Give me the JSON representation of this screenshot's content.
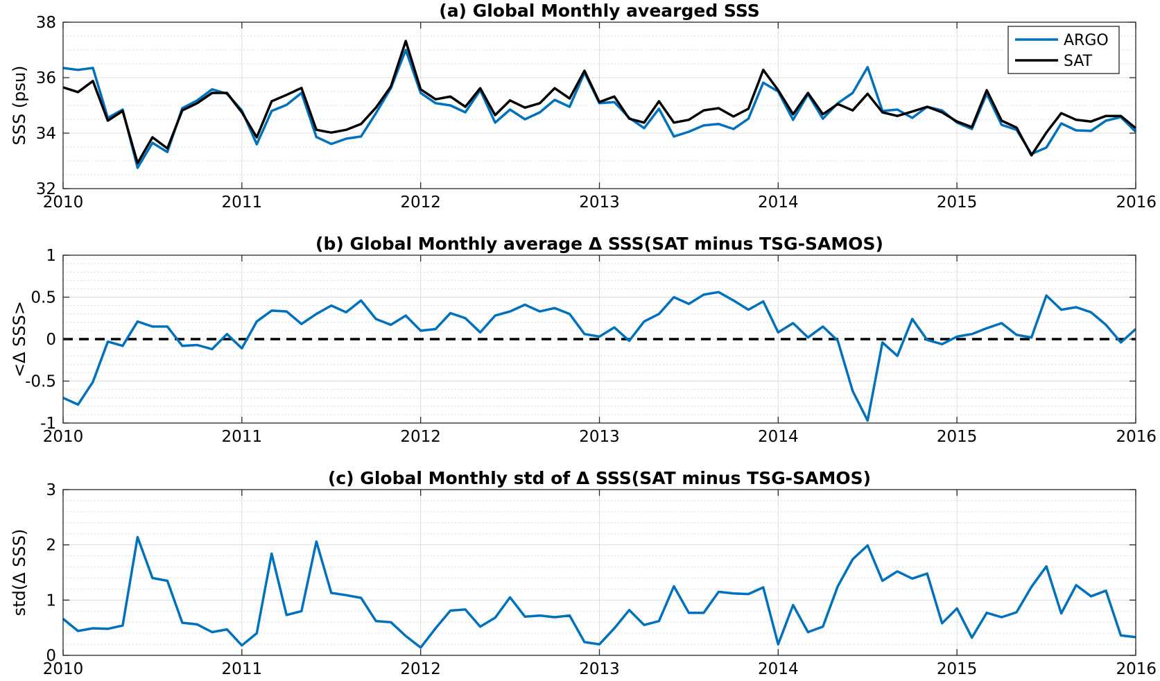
{
  "chart_data": [
    {
      "type": "line",
      "title": "(a) Global Monthly avearged SSS",
      "ylabel": "SSS (psu)",
      "xlim": [
        2010,
        2016
      ],
      "ylim": [
        32,
        38
      ],
      "xticks": [
        2010,
        2011,
        2012,
        2013,
        2014,
        2015,
        2016
      ],
      "yticks": [
        32,
        34,
        36,
        38
      ],
      "grid": true,
      "legend": "top-right",
      "series": [
        {
          "name": "ARGO",
          "color": "#0072BD",
          "values": [
            36.35,
            36.28,
            36.35,
            34.55,
            34.85,
            32.75,
            33.65,
            33.32,
            34.9,
            35.18,
            35.58,
            35.42,
            34.82,
            33.6,
            34.8,
            35.02,
            35.45,
            33.86,
            33.61,
            33.8,
            33.88,
            34.72,
            35.62,
            37.0,
            35.45,
            35.08,
            35.0,
            34.75,
            35.55,
            34.38,
            34.85,
            34.5,
            34.75,
            35.2,
            34.95,
            36.18,
            35.08,
            35.12,
            34.55,
            34.18,
            34.88,
            33.88,
            34.05,
            34.28,
            34.33,
            34.15,
            34.52,
            35.82,
            35.5,
            34.48,
            35.4,
            34.52,
            35.08,
            35.45,
            36.38,
            34.8,
            34.85,
            34.55,
            34.95,
            34.82,
            34.38,
            34.15,
            35.42,
            34.3,
            34.12,
            33.25,
            33.48,
            34.35,
            34.1,
            34.08,
            34.45,
            34.58,
            34.05
          ]
        },
        {
          "name": "SAT",
          "color": "#000000",
          "values": [
            35.65,
            35.48,
            35.88,
            34.45,
            34.8,
            32.92,
            33.85,
            33.45,
            34.82,
            35.08,
            35.45,
            35.45,
            34.75,
            33.85,
            35.15,
            35.38,
            35.63,
            34.12,
            34.02,
            34.12,
            34.33,
            34.92,
            35.68,
            37.32,
            35.58,
            35.22,
            35.32,
            34.95,
            35.62,
            34.65,
            35.18,
            34.92,
            35.08,
            35.62,
            35.25,
            36.25,
            35.12,
            35.32,
            34.52,
            34.38,
            35.15,
            34.38,
            34.48,
            34.82,
            34.9,
            34.6,
            34.88,
            36.28,
            35.55,
            34.68,
            35.45,
            34.68,
            35.05,
            34.82,
            35.42,
            34.75,
            34.62,
            34.78,
            34.95,
            34.75,
            34.42,
            34.22,
            35.55,
            34.45,
            34.2,
            33.2,
            34.02,
            34.72,
            34.48,
            34.42,
            34.62,
            34.62,
            34.18
          ]
        }
      ]
    },
    {
      "type": "line",
      "title": "(b) Global Monthly average Δ SSS(SAT minus TSG-SAMOS)",
      "ylabel": "<Δ SSS>",
      "xlim": [
        2010,
        2016
      ],
      "ylim": [
        -1,
        1
      ],
      "xticks": [
        2010,
        2011,
        2012,
        2013,
        2014,
        2015,
        2016
      ],
      "yticks": [
        -1,
        -0.5,
        0,
        0.5,
        1
      ],
      "grid": true,
      "reference_line": {
        "y": 0,
        "style": "dashed",
        "color": "#000000"
      },
      "series": [
        {
          "color": "#0072BD",
          "values": [
            -0.7,
            -0.78,
            -0.51,
            -0.03,
            -0.08,
            0.21,
            0.15,
            0.15,
            -0.08,
            -0.07,
            -0.12,
            0.06,
            -0.11,
            0.21,
            0.34,
            0.33,
            0.18,
            0.3,
            0.4,
            0.32,
            0.46,
            0.24,
            0.17,
            0.28,
            0.1,
            0.12,
            0.31,
            0.25,
            0.08,
            0.28,
            0.33,
            0.41,
            0.33,
            0.37,
            0.3,
            0.06,
            0.03,
            0.14,
            -0.02,
            0.21,
            0.3,
            0.5,
            0.42,
            0.53,
            0.56,
            0.46,
            0.35,
            0.45,
            0.08,
            0.19,
            0.02,
            0.15,
            -0.02,
            -0.62,
            -0.97,
            -0.04,
            -0.2,
            0.24,
            -0.01,
            -0.06,
            0.03,
            0.06,
            0.13,
            0.19,
            0.05,
            0.02,
            0.52,
            0.35,
            0.38,
            0.32,
            0.17,
            -0.04,
            0.12
          ]
        }
      ]
    },
    {
      "type": "line",
      "title": "(c) Global Monthly std of Δ SSS(SAT minus TSG-SAMOS)",
      "ylabel": "std(Δ SSS)",
      "xlim": [
        2010,
        2016
      ],
      "ylim": [
        0,
        3
      ],
      "xticks": [
        2010,
        2011,
        2012,
        2013,
        2014,
        2015,
        2016
      ],
      "yticks": [
        0,
        1,
        2,
        3
      ],
      "grid": true,
      "series": [
        {
          "color": "#0072BD",
          "values": [
            0.66,
            0.44,
            0.49,
            0.48,
            0.54,
            2.14,
            1.4,
            1.35,
            0.59,
            0.56,
            0.42,
            0.47,
            0.18,
            0.4,
            1.84,
            0.73,
            0.8,
            2.06,
            1.13,
            1.09,
            1.04,
            0.62,
            0.6,
            0.35,
            0.14,
            0.49,
            0.81,
            0.83,
            0.52,
            0.68,
            1.05,
            0.7,
            0.72,
            0.69,
            0.72,
            0.24,
            0.2,
            0.49,
            0.82,
            0.55,
            0.62,
            1.25,
            0.77,
            0.77,
            1.15,
            1.12,
            1.11,
            1.23,
            0.2,
            0.91,
            0.42,
            0.52,
            1.25,
            1.74,
            1.99,
            1.35,
            1.52,
            1.39,
            1.48,
            0.58,
            0.85,
            0.32,
            0.77,
            0.69,
            0.78,
            1.24,
            1.61,
            0.76,
            1.27,
            1.07,
            1.17,
            0.36,
            0.33
          ]
        }
      ]
    }
  ]
}
